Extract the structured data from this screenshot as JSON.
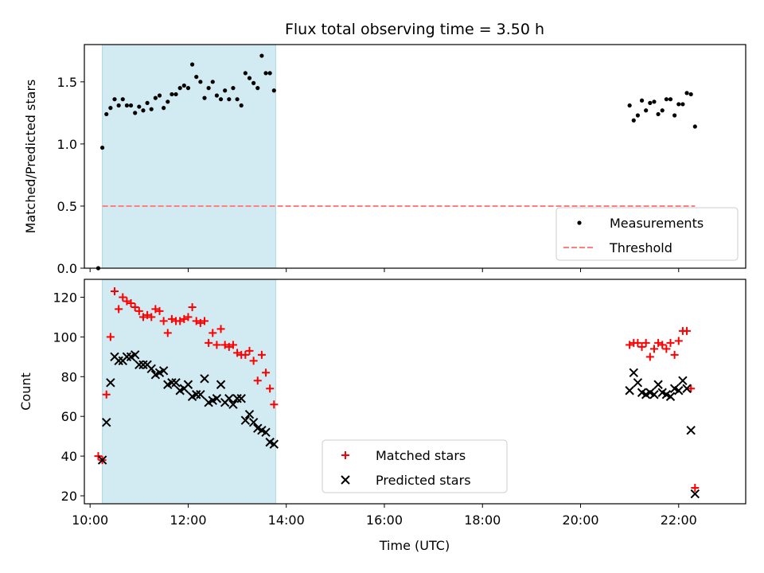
{
  "title": "Flux total observing time = 3.50 h",
  "xlabel": "Time (UTC)",
  "x_ticks": [
    "10:00",
    "12:00",
    "14:00",
    "16:00",
    "18:00",
    "20:00",
    "22:00"
  ],
  "colors": {
    "shade": "#add8e6",
    "measurement": "#000000",
    "threshold": "#ff7f7f",
    "matched": "#ff0000",
    "predicted": "#000000"
  },
  "chart_data": [
    {
      "type": "scatter",
      "ylabel": "Matched/Predicted stars",
      "xlim": [
        "09:53",
        "23:22"
      ],
      "ylim": [
        0,
        1.8
      ],
      "y_ticks": [
        "0.0",
        "0.5",
        "1.0",
        "1.5"
      ],
      "shaded_span": [
        "10:15",
        "13:47"
      ],
      "legend": {
        "position": "lower-right",
        "entries": [
          "Measurements",
          "Threshold"
        ]
      },
      "threshold": {
        "name": "Threshold",
        "y": 0.5,
        "x": [
          "10:15",
          "22:20"
        ]
      },
      "series": [
        {
          "name": "Measurements",
          "points": [
            [
              "10:10",
              0.0
            ],
            [
              "10:15",
              0.97
            ],
            [
              "10:20",
              1.24
            ],
            [
              "10:25",
              1.29
            ],
            [
              "10:30",
              1.36
            ],
            [
              "10:35",
              1.31
            ],
            [
              "10:40",
              1.36
            ],
            [
              "10:45",
              1.31
            ],
            [
              "10:50",
              1.31
            ],
            [
              "10:55",
              1.25
            ],
            [
              "11:00",
              1.3
            ],
            [
              "11:05",
              1.27
            ],
            [
              "11:10",
              1.33
            ],
            [
              "11:15",
              1.28
            ],
            [
              "11:20",
              1.37
            ],
            [
              "11:25",
              1.39
            ],
            [
              "11:30",
              1.29
            ],
            [
              "11:35",
              1.34
            ],
            [
              "11:40",
              1.4
            ],
            [
              "11:45",
              1.4
            ],
            [
              "11:50",
              1.45
            ],
            [
              "11:55",
              1.47
            ],
            [
              "12:00",
              1.45
            ],
            [
              "12:05",
              1.64
            ],
            [
              "12:10",
              1.54
            ],
            [
              "12:15",
              1.5
            ],
            [
              "12:20",
              1.37
            ],
            [
              "12:25",
              1.45
            ],
            [
              "12:30",
              1.5
            ],
            [
              "12:35",
              1.39
            ],
            [
              "12:40",
              1.36
            ],
            [
              "12:45",
              1.43
            ],
            [
              "12:50",
              1.36
            ],
            [
              "12:55",
              1.45
            ],
            [
              "13:00",
              1.36
            ],
            [
              "13:05",
              1.31
            ],
            [
              "13:10",
              1.57
            ],
            [
              "13:15",
              1.53
            ],
            [
              "13:20",
              1.49
            ],
            [
              "13:25",
              1.45
            ],
            [
              "13:30",
              1.71
            ],
            [
              "13:35",
              1.57
            ],
            [
              "13:40",
              1.57
            ],
            [
              "13:45",
              1.43
            ],
            [
              "21:00",
              1.31
            ],
            [
              "21:05",
              1.19
            ],
            [
              "21:10",
              1.23
            ],
            [
              "21:15",
              1.35
            ],
            [
              "21:20",
              1.27
            ],
            [
              "21:25",
              1.33
            ],
            [
              "21:30",
              1.34
            ],
            [
              "21:35",
              1.24
            ],
            [
              "21:40",
              1.27
            ],
            [
              "21:45",
              1.36
            ],
            [
              "21:50",
              1.36
            ],
            [
              "21:55",
              1.23
            ],
            [
              "22:00",
              1.32
            ],
            [
              "22:05",
              1.32
            ],
            [
              "22:10",
              1.41
            ],
            [
              "22:15",
              1.4
            ],
            [
              "22:20",
              1.14
            ]
          ]
        }
      ]
    },
    {
      "type": "scatter",
      "ylabel": "Count",
      "xlim": [
        "09:53",
        "23:22"
      ],
      "ylim": [
        16,
        129
      ],
      "y_ticks": [
        "20",
        "40",
        "60",
        "80",
        "100",
        "120"
      ],
      "shaded_span": [
        "10:15",
        "13:47"
      ],
      "legend": {
        "position": "lower-center",
        "entries": [
          "Matched stars",
          "Predicted stars"
        ]
      },
      "series": [
        {
          "name": "Matched stars",
          "marker": "+",
          "points": [
            [
              "10:10",
              40
            ],
            [
              "10:15",
              38
            ],
            [
              "10:20",
              71
            ],
            [
              "10:25",
              100
            ],
            [
              "10:30",
              123
            ],
            [
              "10:35",
              114
            ],
            [
              "10:40",
              120
            ],
            [
              "10:45",
              118
            ],
            [
              "10:50",
              117
            ],
            [
              "10:55",
              115
            ],
            [
              "11:00",
              113
            ],
            [
              "11:05",
              110
            ],
            [
              "11:10",
              111
            ],
            [
              "11:15",
              110
            ],
            [
              "11:20",
              114
            ],
            [
              "11:25",
              113
            ],
            [
              "11:30",
              108
            ],
            [
              "11:35",
              102
            ],
            [
              "11:40",
              109
            ],
            [
              "11:45",
              108
            ],
            [
              "11:50",
              108
            ],
            [
              "11:55",
              109
            ],
            [
              "12:00",
              110
            ],
            [
              "12:05",
              115
            ],
            [
              "12:10",
              108
            ],
            [
              "12:15",
              107
            ],
            [
              "12:20",
              108
            ],
            [
              "12:25",
              97
            ],
            [
              "12:30",
              102
            ],
            [
              "12:35",
              96
            ],
            [
              "12:40",
              104
            ],
            [
              "12:45",
              96
            ],
            [
              "12:50",
              95
            ],
            [
              "12:55",
              96
            ],
            [
              "13:00",
              92
            ],
            [
              "13:05",
              91
            ],
            [
              "13:10",
              91
            ],
            [
              "13:15",
              93
            ],
            [
              "13:20",
              88
            ],
            [
              "13:25",
              78
            ],
            [
              "13:30",
              91
            ],
            [
              "13:35",
              82
            ],
            [
              "13:40",
              74
            ],
            [
              "13:45",
              66
            ],
            [
              "21:00",
              96
            ],
            [
              "21:05",
              97
            ],
            [
              "21:10",
              97
            ],
            [
              "21:15",
              95
            ],
            [
              "21:20",
              97
            ],
            [
              "21:25",
              90
            ],
            [
              "21:30",
              94
            ],
            [
              "21:35",
              97
            ],
            [
              "21:40",
              96
            ],
            [
              "21:45",
              94
            ],
            [
              "21:50",
              97
            ],
            [
              "21:55",
              91
            ],
            [
              "22:00",
              98
            ],
            [
              "22:05",
              103
            ],
            [
              "22:10",
              103
            ],
            [
              "22:15",
              74
            ],
            [
              "22:20",
              24
            ]
          ]
        },
        {
          "name": "Predicted stars",
          "marker": "x",
          "points": [
            [
              "10:15",
              38
            ],
            [
              "10:20",
              57
            ],
            [
              "10:25",
              77
            ],
            [
              "10:30",
              90
            ],
            [
              "10:35",
              88
            ],
            [
              "10:40",
              88
            ],
            [
              "10:45",
              90
            ],
            [
              "10:50",
              90
            ],
            [
              "10:55",
              91
            ],
            [
              "11:00",
              86
            ],
            [
              "11:05",
              86
            ],
            [
              "11:10",
              86
            ],
            [
              "11:15",
              84
            ],
            [
              "11:20",
              81
            ],
            [
              "11:25",
              82
            ],
            [
              "11:30",
              83
            ],
            [
              "11:35",
              76
            ],
            [
              "11:40",
              77
            ],
            [
              "11:45",
              77
            ],
            [
              "11:50",
              73
            ],
            [
              "11:55",
              74
            ],
            [
              "12:00",
              76
            ],
            [
              "12:05",
              70
            ],
            [
              "12:10",
              71
            ],
            [
              "12:15",
              71
            ],
            [
              "12:20",
              79
            ],
            [
              "12:25",
              67
            ],
            [
              "12:30",
              68
            ],
            [
              "12:35",
              69
            ],
            [
              "12:40",
              76
            ],
            [
              "12:45",
              67
            ],
            [
              "12:50",
              69
            ],
            [
              "12:55",
              66
            ],
            [
              "13:00",
              69
            ],
            [
              "13:05",
              69
            ],
            [
              "13:10",
              58
            ],
            [
              "13:15",
              61
            ],
            [
              "13:20",
              57
            ],
            [
              "13:25",
              54
            ],
            [
              "13:30",
              53
            ],
            [
              "13:35",
              52
            ],
            [
              "13:40",
              47
            ],
            [
              "13:45",
              46
            ],
            [
              "21:00",
              73
            ],
            [
              "21:05",
              82
            ],
            [
              "21:10",
              77
            ],
            [
              "21:15",
              72
            ],
            [
              "21:20",
              71
            ],
            [
              "21:25",
              72
            ],
            [
              "21:30",
              71
            ],
            [
              "21:35",
              76
            ],
            [
              "21:40",
              72
            ],
            [
              "21:45",
              71
            ],
            [
              "21:50",
              70
            ],
            [
              "21:55",
              74
            ],
            [
              "22:00",
              73
            ],
            [
              "22:05",
              78
            ],
            [
              "22:10",
              74
            ],
            [
              "22:15",
              53
            ],
            [
              "22:20",
              21
            ]
          ]
        }
      ]
    }
  ]
}
